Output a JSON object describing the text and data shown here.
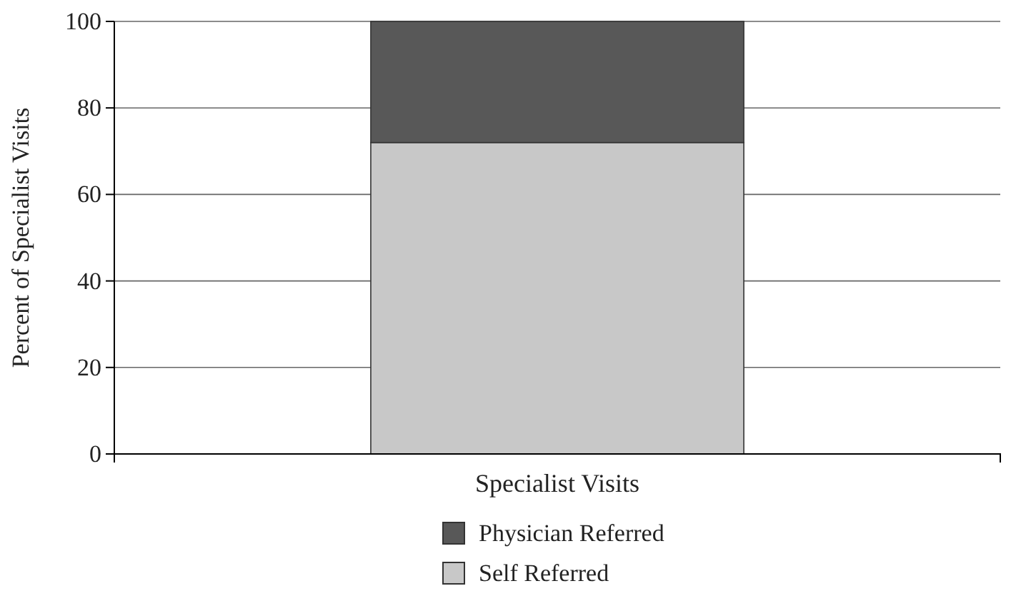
{
  "chart_data": {
    "type": "bar",
    "ylabel": "Percent of Specialist Visits",
    "categories": [
      "Specialist Visits"
    ],
    "stacked": true,
    "series": [
      {
        "name": "Self Referred",
        "color": "#c8c8c8",
        "values": [
          72
        ]
      },
      {
        "name": "Physician Referred",
        "color": "#585858",
        "values": [
          28
        ]
      }
    ],
    "ylim": [
      0,
      100
    ],
    "yticks": [
      0,
      20,
      40,
      60,
      80,
      100
    ],
    "grid": "y",
    "legend": "bottom"
  }
}
